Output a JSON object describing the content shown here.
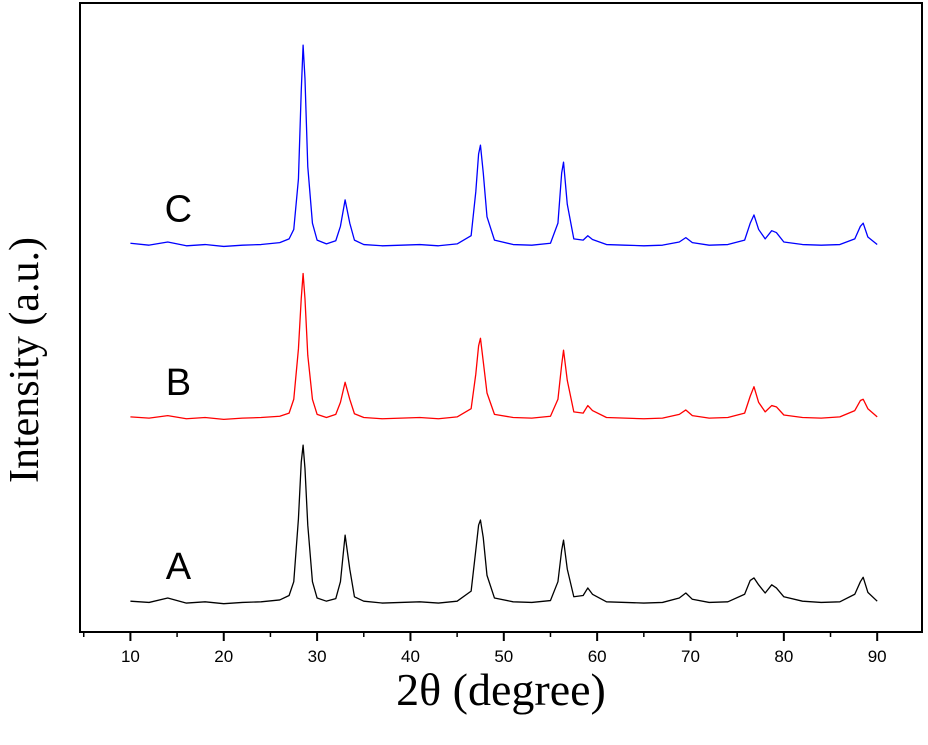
{
  "chart_data": {
    "type": "line",
    "x_label": "2θ (degree)",
    "y_label": "Intensity (a.u.)",
    "xlim": [
      4.6,
      94.8
    ],
    "ylim": [
      0,
      100
    ],
    "xticks": [
      10,
      20,
      30,
      40,
      50,
      60,
      70,
      80,
      90
    ],
    "xminorticks": [
      5,
      15,
      25,
      35,
      45,
      55,
      65,
      75,
      85
    ],
    "x": [
      10,
      12,
      14,
      16,
      18,
      20,
      22,
      24,
      26,
      27,
      27.5,
      28,
      28.3,
      28.5,
      28.7,
      29,
      29.5,
      30,
      31,
      32,
      32.5,
      33,
      33.5,
      34,
      35,
      37,
      39,
      41,
      43,
      45,
      46.5,
      47,
      47.3,
      47.5,
      47.8,
      48.2,
      49,
      51,
      53,
      55,
      55.8,
      56.2,
      56.4,
      56.8,
      57.5,
      58.5,
      59,
      59.5,
      61,
      63,
      65,
      67,
      68.8,
      69.5,
      70.2,
      72,
      74,
      75.8,
      76.4,
      76.8,
      77.3,
      78,
      78.7,
      79.2,
      80,
      82,
      84,
      86,
      87.6,
      88.2,
      88.5,
      89,
      90
    ],
    "series": [
      {
        "name": "A",
        "color": "#000000",
        "values": [
          4.9,
          4.7,
          5.4,
          4.6,
          4.8,
          4.5,
          4.7,
          4.8,
          5.1,
          5.8,
          8,
          18,
          27,
          29.7,
          26,
          17,
          8,
          5.4,
          4.9,
          5.3,
          8,
          15.4,
          10,
          5.6,
          4.9,
          4.6,
          4.7,
          4.8,
          4.6,
          4.9,
          6.5,
          13,
          17,
          17.8,
          15,
          9,
          5.4,
          4.8,
          4.7,
          5,
          8,
          13,
          14.6,
          10,
          5.6,
          5.8,
          7,
          6,
          4.8,
          4.7,
          4.6,
          4.7,
          5.4,
          6.2,
          5.2,
          4.7,
          4.8,
          6,
          8.2,
          8.6,
          7.5,
          6.2,
          7.5,
          7,
          5.6,
          4.9,
          4.7,
          4.8,
          6,
          8,
          8.7,
          6.3,
          4.9
        ]
      },
      {
        "name": "B",
        "color": "#ff0000",
        "values": [
          34.2,
          34,
          34.4,
          33.9,
          34.1,
          33.8,
          34,
          34.1,
          34.3,
          34.8,
          37,
          45,
          53,
          57,
          53,
          44,
          37,
          34.6,
          34.1,
          34.6,
          36.5,
          39.7,
          37,
          34.7,
          34.1,
          33.9,
          34,
          34.1,
          33.9,
          34.2,
          35.5,
          41,
          45.5,
          46.7,
          43,
          38,
          34.6,
          34.1,
          34,
          34.3,
          37,
          42.5,
          44.8,
          40,
          35,
          34.8,
          36,
          35.2,
          34.1,
          34,
          33.9,
          34,
          34.6,
          35.3,
          34.4,
          34,
          34.1,
          34.8,
          37.5,
          39,
          36.5,
          35,
          36,
          35.8,
          34.5,
          34.1,
          34,
          34.2,
          35.2,
          36.8,
          37,
          35.5,
          34.2
        ]
      },
      {
        "name": "C",
        "color": "#0000ff",
        "values": [
          61.8,
          61.5,
          62,
          61.4,
          61.6,
          61.3,
          61.5,
          61.6,
          61.9,
          62.5,
          64,
          72,
          86,
          93.3,
          88,
          74,
          65,
          62.3,
          61.7,
          62.2,
          64.5,
          68.7,
          65,
          62.3,
          61.6,
          61.4,
          61.5,
          61.6,
          61.4,
          61.7,
          63,
          70,
          76,
          77.4,
          73,
          66,
          62.3,
          61.6,
          61.5,
          61.8,
          65,
          73,
          74.7,
          68,
          62.5,
          62.3,
          63,
          62.4,
          61.6,
          61.5,
          61.4,
          61.5,
          62,
          62.7,
          61.9,
          61.5,
          61.6,
          62.3,
          65,
          66.3,
          64,
          62.5,
          63.8,
          63.5,
          62,
          61.6,
          61.5,
          61.6,
          62.5,
          64.5,
          65,
          62.8,
          61.6
        ]
      }
    ]
  }
}
